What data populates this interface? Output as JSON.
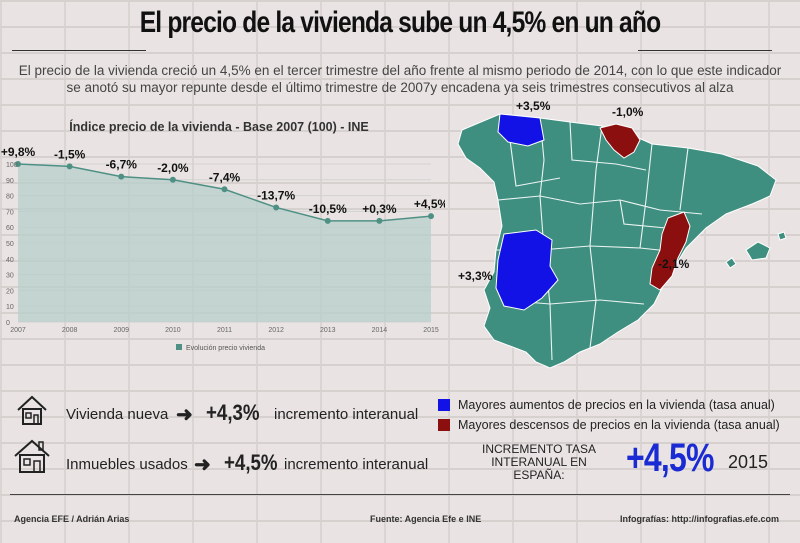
{
  "title": "El precio de la vivienda sube un 4,5% en un año",
  "subtitle": "El precio de la vivienda creció un 4,5% en el tercer trimestre del año frente al mismo periodo de 2014, con lo que este indicador se anotó su mayor repunte desde el último trimestre de 2007y encadena ya seis trimestres consecutivos al alza",
  "chart_data": {
    "type": "area",
    "title": "Índice precio de la vivienda - Base 2007 (100) - INE",
    "categories": [
      "2007",
      "2008",
      "2009",
      "2010",
      "2011",
      "2012",
      "2013",
      "2014",
      "2015"
    ],
    "values": [
      100,
      98.5,
      92,
      90,
      84,
      72.5,
      64,
      64,
      67
    ],
    "change_labels": [
      "+9,8%",
      "-1,5%",
      "-6,7%",
      "-2,0%",
      "-7,4%",
      "-13,7%",
      "-10,5%",
      "+0,3%",
      "+4,5%"
    ],
    "ylim": [
      0,
      100
    ],
    "yticks": [
      "0",
      "10",
      "20",
      "30",
      "40",
      "50",
      "60",
      "70",
      "80",
      "90",
      "100"
    ],
    "legend": "Evolución precio vivienda",
    "series_color": "#4f9085",
    "fill_color": "#b7cfcb"
  },
  "map": {
    "labels": {
      "top_blue": "+3,5%",
      "top_red": "-1,0%",
      "right_red": "-2,1%",
      "left_blue": "+3,3%"
    },
    "colors": {
      "base": "#3e8f80",
      "increase": "#1212e6",
      "decrease": "#8c0f0f",
      "border": "#ffffff"
    }
  },
  "legend": {
    "increase": "Mayores aumentos de precios en la vivienda (tasa anual)",
    "decrease": "Mayores descensos de precios en la vivienda (tasa anual)"
  },
  "stats": {
    "new": {
      "label": "Vivienda nueva",
      "value": "+4,3%",
      "suffix": "incremento interanual"
    },
    "used": {
      "label": "Inmuebles usados",
      "value": "+4,5%",
      "suffix": "incremento interanual"
    }
  },
  "spain": {
    "label": "INCREMENTO TASA INTERANUAL EN ESPAÑA:",
    "value": "+4,5%",
    "year": "2015"
  },
  "footer": {
    "left": "Agencia EFE / Adrián Arias",
    "center": "Fuente: Agencia Efe e INE",
    "right": "Infografías: http://infografias.efe.com"
  }
}
